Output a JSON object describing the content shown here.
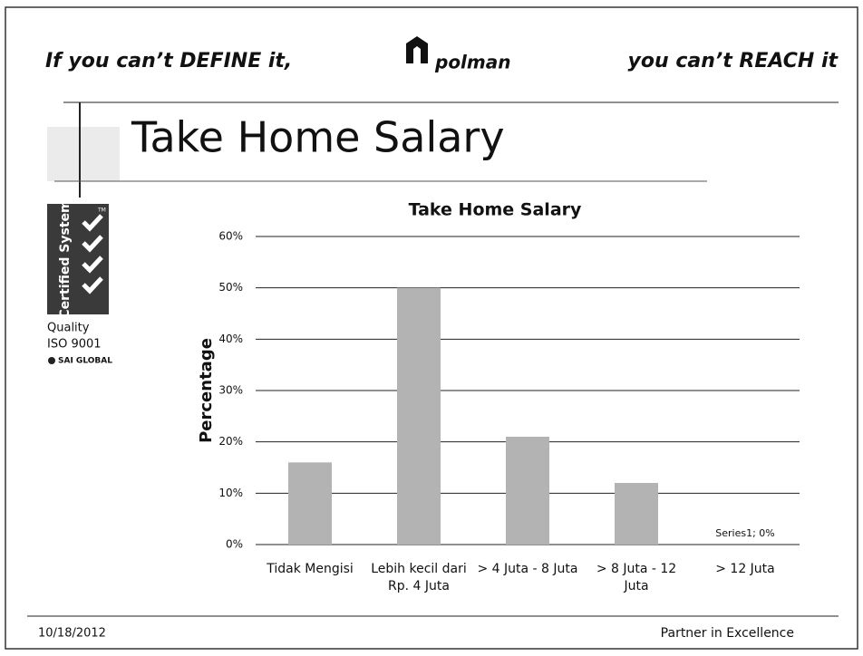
{
  "header": {
    "left": "If you can’t DEFINE it,",
    "logo": "polman",
    "right": "you can’t REACH it"
  },
  "slide_title": "Take Home Salary",
  "badge": {
    "mark": "Certified System",
    "tm": "TM",
    "line1": "Quality",
    "line2": "ISO 9001",
    "issuer": "SAI GLOBAL"
  },
  "footer": {
    "date": "10/18/2012",
    "tagline": "Partner in Excellence"
  },
  "chart_data": {
    "type": "bar",
    "title": "Take Home Salary",
    "y_label": "Percentage",
    "categories": [
      "Tidak Mengisi",
      "Lebih kecil dari Rp. 4 Juta",
      "> 4 Juta - 8 Juta",
      "> 8 Juta - 12 Juta",
      "> 12 Juta"
    ],
    "values": [
      16,
      50,
      21,
      12,
      0
    ],
    "value_labels": [
      null,
      null,
      null,
      null,
      "Series1; 0%"
    ],
    "color": "#b3b3b3",
    "grid": true,
    "ylim": [
      0,
      60
    ],
    "yticks": [
      {
        "value": 0,
        "label": "0%"
      },
      {
        "value": 10,
        "label": "10%"
      },
      {
        "value": 20,
        "label": "20%"
      },
      {
        "value": 30,
        "label": "30%"
      },
      {
        "value": 40,
        "label": "40%"
      },
      {
        "value": 50,
        "label": "50%"
      },
      {
        "value": 60,
        "label": "60%"
      }
    ]
  }
}
